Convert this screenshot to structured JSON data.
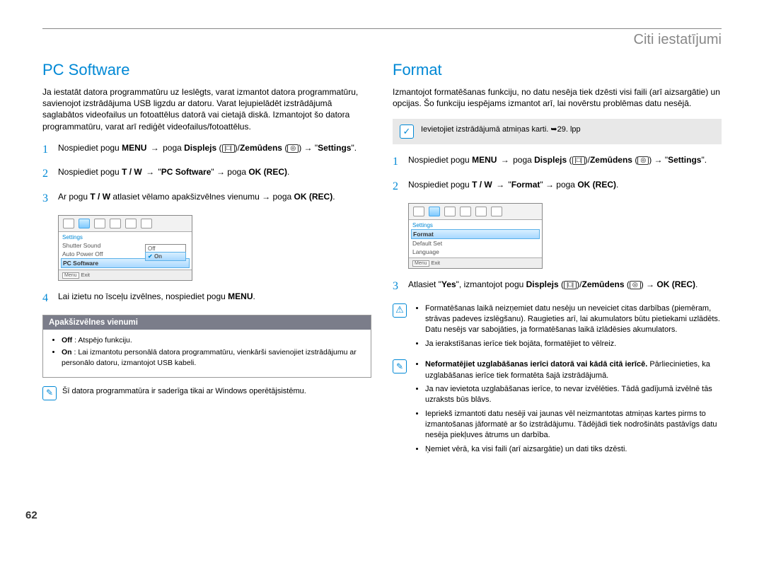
{
  "chapter": "Citi iestatījumi",
  "pagenum": "62",
  "left": {
    "heading": "PC Software",
    "intro": "Ja iestatāt datora programmatūru uz Ieslēgts, varat izmantot datora programmatūru, savienojot izstrādājuma USB ligzdu ar datoru. Varat lejupielādēt izstrādājumā saglabātos videofailus un fotoattēlus datorā vai cietajā diskā. Izmantojot šo datora programmatūru, varat arī rediģēt videofailus/fotoattēlus.",
    "step1a": "Nospiediet pogu ",
    "step1_menu": "MENU",
    "step1b": " → poga ",
    "step1_disp": "Displejs",
    "step1c": " (",
    "step1_sym1": "|□|",
    "step1d": ")/",
    "step1_zem": "Zemūdens",
    "step1e": " (",
    "step1_sym2": "◎",
    "step1f": ") → \"",
    "step1_set": "Settings",
    "step1g": "\".",
    "step2a": "Nospiediet pogu ",
    "step2_tw": "T / W",
    "step2b": " → \"",
    "step2_pc": "PC Software",
    "step2c": "\" → poga ",
    "step2_ok": "OK (REC)",
    "step2d": ".",
    "step3a": "Ar pogu ",
    "step3_tw": "T / W",
    "step3b": " atlasiet vēlamo apakšizvēlnes vienumu → poga ",
    "step3_ok": "OK (REC)",
    "step3c": ".",
    "step4a": "Lai izietu no īsceļu izvēlnes, nospiediet pogu ",
    "step4_menu": "MENU",
    "step4b": ".",
    "shot": {
      "hdr": "Settings",
      "r1": "Shutter Sound",
      "r2": "Auto Power Off",
      "r3": "PC Software",
      "off": "Off",
      "on": "On",
      "menu": "Menu",
      "exit": "Exit"
    },
    "sub_head": "Apakšizvēlnes vienumi",
    "sub_off_lab": "Off",
    "sub_off": " : Atspējo funkciju.",
    "sub_on_lab": "On",
    "sub_on": " : Lai izmantotu personālā datora programmatūru, vienkārši savienojiet izstrādājumu ar personālo datoru, izmantojot USB kabeli.",
    "note1": "Šī datora programmatūra ir saderīga tikai ar Windows operētājsistēmu."
  },
  "right": {
    "heading": "Format",
    "intro": "Izmantojot formatēšanas funkciju, no datu nesēja tiek dzēsti visi faili (arī aizsargātie) un opcijas. Šo funkciju iespējams izmantot arī, lai novērstu problēmas datu nesējā.",
    "gray_note": "Ievietojiet izstrādājumā atmiņas karti. ➥29. lpp",
    "step1a": "Nospiediet pogu ",
    "step1_menu": "MENU",
    "step1b": " → poga ",
    "step1_disp": "Displejs",
    "step1c": " (",
    "step1_sym1": "|□|",
    "step1d": ")/",
    "step1_zem": "Zemūdens",
    "step1e": " (",
    "step1_sym2": "◎",
    "step1f": ") → \"",
    "step1_set": "Settings",
    "step1g": "\".",
    "step2a": "Nospiediet pogu ",
    "step2_tw": "T / W",
    "step2b": " → \"",
    "step2_fmt": "Format",
    "step2c": "\" → poga ",
    "step2_ok": "OK (REC)",
    "step2d": ".",
    "step3a": "Atlasiet \"",
    "step3_yes": "Yes",
    "step3b": "\", izmantojot pogu ",
    "step3_disp": "Displejs",
    "step3c": " (",
    "step3_sym1": "|□|",
    "step3d": ")/",
    "step3_zem": "Zemūdens",
    "step3e": " (",
    "step3_sym2": "◎",
    "step3f": ") → ",
    "step3_ok": "OK (REC)",
    "step3g": ".",
    "shot": {
      "hdr": "Settings",
      "r1": "Format",
      "r2": "Default Set",
      "r3": "Language",
      "menu": "Menu",
      "exit": "Exit"
    },
    "warn1": "Formatēšanas laikā neizņemiet datu nesēju un neveiciet citas darbības (piemēram, strāvas padeves izslēgšanu). Raugieties arī, lai akumulators būtu pietiekami uzlādēts. Datu nesējs var sabojāties, ja formatēšanas laikā izlādēsies akumulators.",
    "warn2": "Ja ierakstīšanas ierīce tiek bojāta, formatējiet to vēlreiz.",
    "tip1_bold": "Neformatējiet uzglabāšanas ierīci datorā vai kādā citā ierīcē.",
    "tip1_rest": " Pārliecinieties, ka uzglabāšanas ierīce tiek formatēta šajā izstrādājumā.",
    "tip2": "Ja nav ievietota uzglabāšanas ierīce, to nevar izvēlēties. Tādā gadījumā izvēlnē tās uzraksts būs blāvs.",
    "tip3": "Iepriekš izmantoti datu nesēji vai jaunas vēl neizmantotas atmiņas kartes pirms to izmantošanas jāformatē ar šo izstrādājumu. Tādējādi tiek nodrošināts pastāvīgs datu nesēja piekļuves ātrums un darbība.",
    "tip4": "Ņemiet vērā, ka visi faili (arī aizsargātie) un dati tiks dzēsti."
  }
}
